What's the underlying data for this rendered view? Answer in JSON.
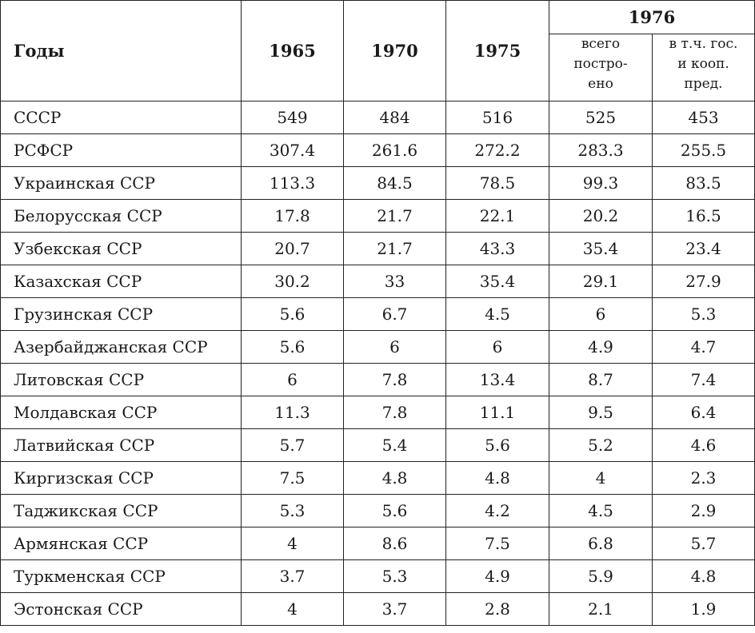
{
  "header": {
    "years_label": "Годы",
    "year_1965": "1965",
    "year_1970": "1970",
    "year_1975": "1975",
    "year_1976": "1976",
    "sub_total_lines": [
      "всего",
      "постро-",
      "ено"
    ],
    "sub_state_lines": [
      "в т.ч. гос.",
      "и кооп.",
      "пред."
    ]
  },
  "rows": [
    {
      "name": "СССР",
      "v": [
        "549",
        "484",
        "516",
        "525",
        "453"
      ]
    },
    {
      "name": "РСФСР",
      "v": [
        "307.4",
        "261.6",
        "272.2",
        "283.3",
        "255.5"
      ]
    },
    {
      "name": "Украинская ССР",
      "v": [
        "113.3",
        "84.5",
        "78.5",
        "99.3",
        "83.5"
      ]
    },
    {
      "name": "Белорусская ССР",
      "v": [
        "17.8",
        "21.7",
        "22.1",
        "20.2",
        "16.5"
      ]
    },
    {
      "name": "Узбекская ССР",
      "v": [
        "20.7",
        "21.7",
        "43.3",
        "35.4",
        "23.4"
      ]
    },
    {
      "name": "Казахская ССР",
      "v": [
        "30.2",
        "33",
        "35.4",
        "29.1",
        "27.9"
      ]
    },
    {
      "name": "Грузинская ССР",
      "v": [
        "5.6",
        "6.7",
        "4.5",
        "6",
        "5.3"
      ]
    },
    {
      "name": "Азербайджанская ССР",
      "v": [
        "5.6",
        "6",
        "6",
        "4.9",
        "4.7"
      ]
    },
    {
      "name": "Литовская ССР",
      "v": [
        "6",
        "7.8",
        "13.4",
        "8.7",
        "7.4"
      ]
    },
    {
      "name": "Молдавская ССР",
      "v": [
        "11.3",
        "7.8",
        "11.1",
        "9.5",
        "6.4"
      ]
    },
    {
      "name": "Латвийская ССР",
      "v": [
        "5.7",
        "5.4",
        "5.6",
        "5.2",
        "4.6"
      ]
    },
    {
      "name": "Киргизская ССР",
      "v": [
        "7.5",
        "4.8",
        "4.8",
        "4",
        "2.3"
      ]
    },
    {
      "name": "Таджикская ССР",
      "v": [
        "5.3",
        "5.6",
        "4.2",
        "4.5",
        "2.9"
      ]
    },
    {
      "name": "Армянская ССР",
      "v": [
        "4",
        "8.6",
        "7.5",
        "6.8",
        "5.7"
      ]
    },
    {
      "name": "Туркменская ССР",
      "v": [
        "3.7",
        "5.3",
        "4.9",
        "5.9",
        "4.8"
      ]
    },
    {
      "name": "Эстонская ССР",
      "v": [
        "4",
        "3.7",
        "2.8",
        "2.1",
        "1.9"
      ]
    }
  ]
}
